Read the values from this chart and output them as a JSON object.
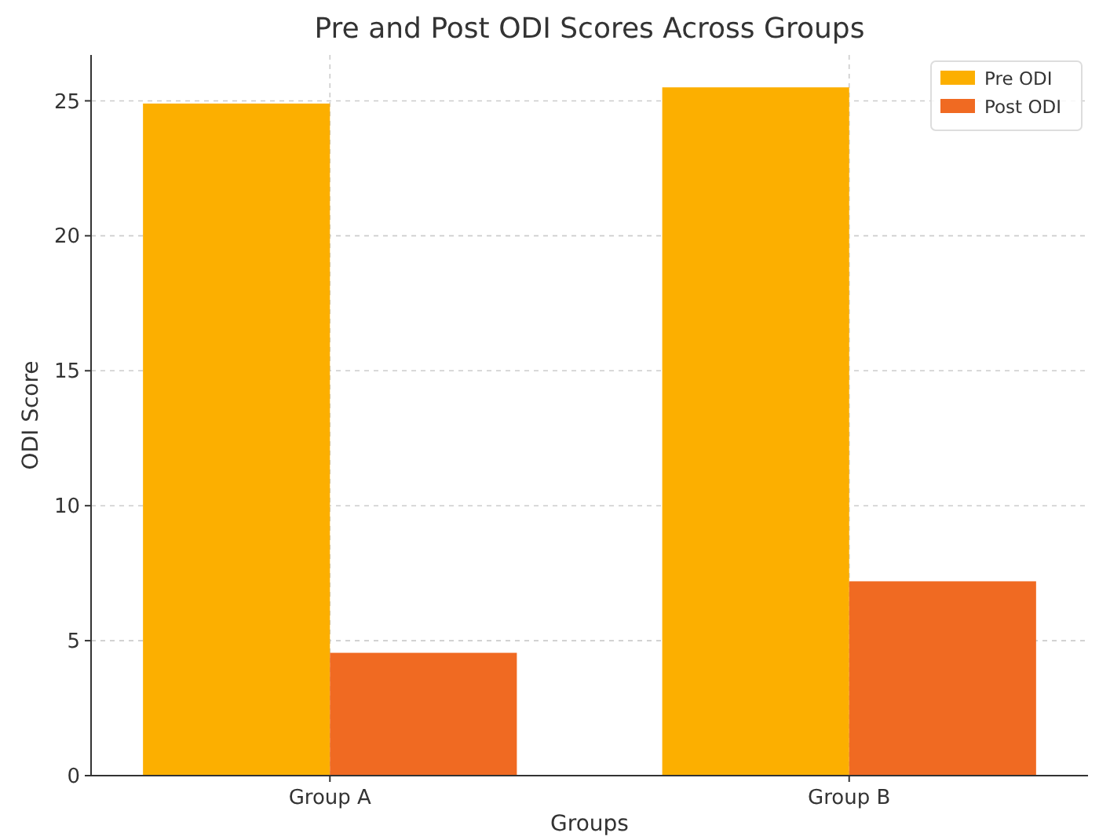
{
  "chart_data": {
    "type": "bar",
    "title": "Pre and Post ODI Scores Across Groups",
    "xlabel": "Groups",
    "ylabel": "ODI Score",
    "categories": [
      "Group A",
      "Group B"
    ],
    "series": [
      {
        "name": "Pre ODI",
        "color": "#fcaf00",
        "values": [
          24.9,
          25.5
        ]
      },
      {
        "name": "Post ODI",
        "color": "#f06a22",
        "values": [
          4.55,
          7.2
        ]
      }
    ],
    "ylim": [
      0,
      26.7
    ],
    "yticks": [
      0,
      5,
      10,
      15,
      20,
      25
    ],
    "grid": true,
    "legend": "top right"
  }
}
